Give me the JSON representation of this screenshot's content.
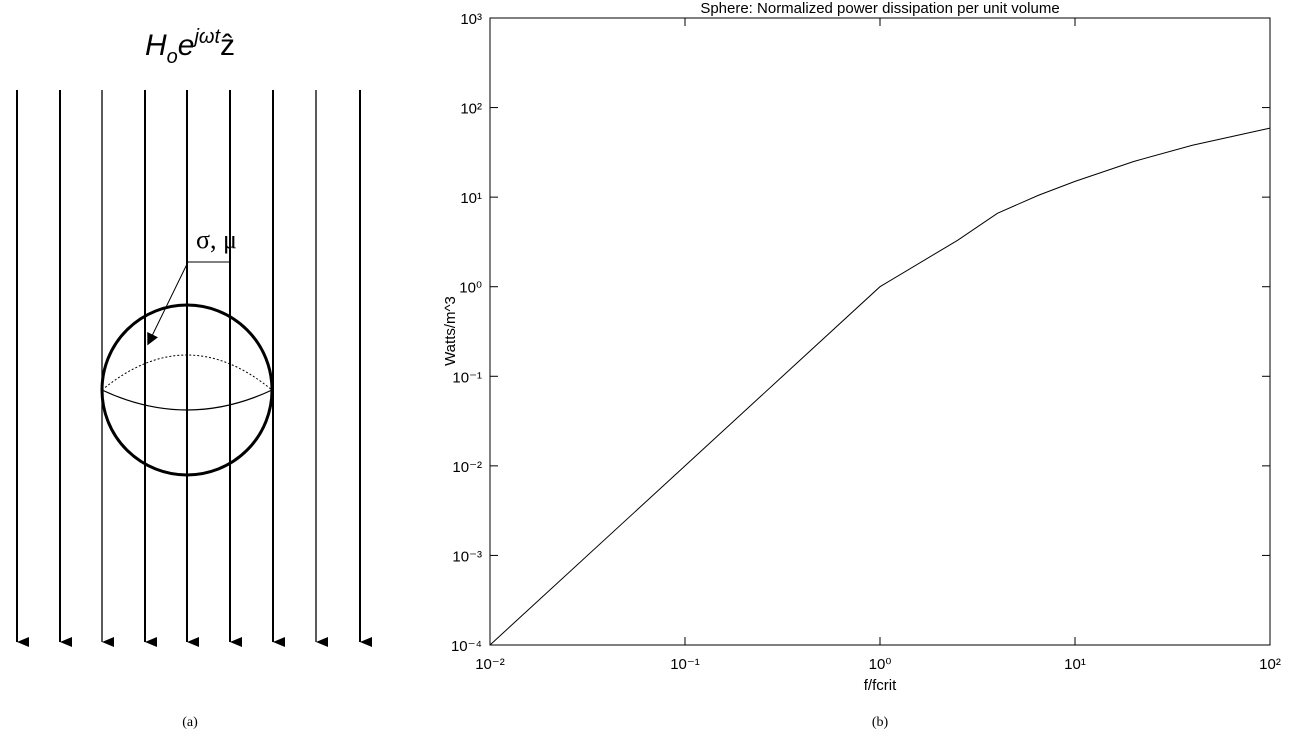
{
  "diagram": {
    "field": {
      "base": "H",
      "sub": "o",
      "exp_base": "e",
      "sup": "jωt",
      "dir": "ẑ"
    },
    "material_label": "σ, μ",
    "caption": "(a)"
  },
  "chart_data": {
    "type": "line",
    "title": "Sphere: Normalized power dissipation per unit volume",
    "xlabel": "f/fcrit",
    "ylabel": "Watts/m^3",
    "caption": "(b)",
    "xscale": "log",
    "yscale": "log",
    "color": "#000000",
    "x": [
      0.01,
      0.1,
      1,
      2.5,
      4,
      6.5,
      10,
      20,
      40,
      100
    ],
    "values": [
      0.0001,
      0.01,
      1,
      3.3,
      6.6,
      10.5,
      15,
      25,
      38,
      59
    ],
    "xlim": [
      0.01,
      100
    ],
    "xticks": [
      {
        "value": 0.01,
        "label": "10⁻²"
      },
      {
        "value": 0.1,
        "label": "10⁻¹"
      },
      {
        "value": 1,
        "label": "10⁰"
      },
      {
        "value": 10,
        "label": "10¹"
      },
      {
        "value": 100,
        "label": "10²"
      }
    ],
    "ylim": [
      0.0001,
      1000
    ],
    "yticks": [
      {
        "value": 0.0001,
        "label": "10⁻⁴"
      },
      {
        "value": 0.001,
        "label": "10⁻³"
      },
      {
        "value": 0.01,
        "label": "10⁻²"
      },
      {
        "value": 0.1,
        "label": "10⁻¹"
      },
      {
        "value": 1,
        "label": "10⁰"
      },
      {
        "value": 10,
        "label": "10¹"
      },
      {
        "value": 100,
        "label": "10²"
      },
      {
        "value": 1000,
        "label": "10³"
      }
    ]
  }
}
